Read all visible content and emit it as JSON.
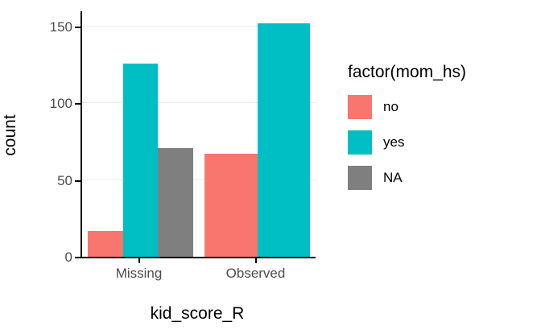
{
  "chart_data": {
    "type": "bar",
    "title": "",
    "xlabel": "kid_score_R",
    "ylabel": "count",
    "categories": [
      "Missing",
      "Observed"
    ],
    "series": [
      {
        "name": "no",
        "color": "#F8766D",
        "values": [
          17,
          67
        ]
      },
      {
        "name": "yes",
        "color": "#00BFC4",
        "values": [
          126,
          152
        ]
      },
      {
        "name": "NA",
        "color": "#7F7F7F",
        "values": [
          71,
          null
        ]
      }
    ],
    "ylim": [
      0,
      160
    ],
    "yticks": [
      0,
      50,
      100,
      150
    ],
    "grid": true,
    "legend": {
      "title": "factor(mom_hs)",
      "position": "right"
    }
  },
  "colors": {
    "axis_line": "#000000",
    "axis_text": "#4d4d4d",
    "gridline": "#ebebeb",
    "background": "#ffffff"
  }
}
